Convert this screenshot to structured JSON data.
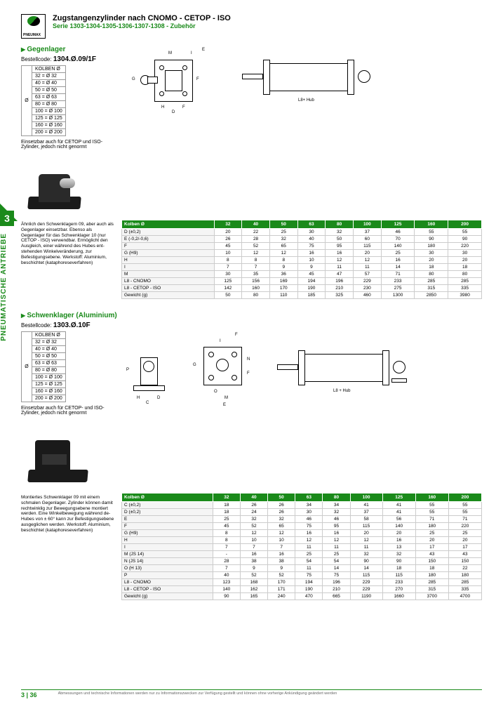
{
  "header": {
    "title": "Zugstangenzylinder nach CNOMO - CETOP - ISO",
    "subtitle": "Serie 1303-1304-1305-1306-1307-1308 - Zubehör",
    "brand": "PNEUMAX"
  },
  "sidebar": {
    "chapter": "3",
    "label": "PNEUMATISCHE ANTRIEBE"
  },
  "sec1": {
    "title": "Gegenlager",
    "code_lbl": "Bestellcode:",
    "code": "1304.Ø.09/1F",
    "kolben_hdr": "KOLBEN Ø",
    "kolben": [
      "32 = Ø 32",
      "40 = Ø 40",
      "50 = Ø 50",
      "63 = Ø 63",
      "80 = Ø 80",
      "100 = Ø 100",
      "125 = Ø 125",
      "160 = Ø 160",
      "200 = Ø 200"
    ],
    "note": "Einsetzbar auch für CETOP und ISO-Zylinder, jedoch nicht genormt",
    "desc": "Ähnlich den Schwenklagern 09, aber auch als Gegenlager einsetzbar. Ebenso als Gegenlager für das Schwenklager 10 (nur CETOP - ISO) verwendbar. Ermöglicht den Ausgleich, einer während des Hubes ent-stehenden Winkelveränderung, zur Befestigungsebene. Werkstoff: Aluminium, beschichtet (kataphoreseverfahren)",
    "cylinder_lbl": "L8+ Hub",
    "cols": [
      "Kolben Ø",
      "32",
      "40",
      "50",
      "63",
      "80",
      "100",
      "125",
      "160",
      "200"
    ],
    "rows": [
      [
        "D (±0,2)",
        "20",
        "22",
        "25",
        "30",
        "32",
        "37",
        "46",
        "55",
        "55"
      ],
      [
        "E (-0,2/-0,6)",
        "26",
        "28",
        "32",
        "40",
        "50",
        "60",
        "70",
        "90",
        "90"
      ],
      [
        "F",
        "45",
        "52",
        "65",
        "75",
        "95",
        "115",
        "140",
        "180",
        "220"
      ],
      [
        "G (H9)",
        "10",
        "12",
        "12",
        "16",
        "16",
        "20",
        "25",
        "30",
        "30"
      ],
      [
        "H",
        "8",
        "8",
        "8",
        "10",
        "12",
        "12",
        "16",
        "20",
        "20"
      ],
      [
        "I",
        "7",
        "7",
        "9",
        "9",
        "11",
        "11",
        "14",
        "18",
        "18"
      ],
      [
        "M",
        "30",
        "35",
        "36",
        "45",
        "47",
        "57",
        "71",
        "80",
        "80"
      ],
      [
        "L8 - CNOMO",
        "125",
        "156",
        "169",
        "194",
        "196",
        "229",
        "233",
        "285",
        "285"
      ],
      [
        "L8 - CETOP - ISO",
        "142",
        "160",
        "170",
        "190",
        "210",
        "230",
        "275",
        "315",
        "335"
      ],
      [
        "Gewicht (g)",
        "50",
        "80",
        "110",
        "185",
        "325",
        "460",
        "1300",
        "2850",
        "3980"
      ]
    ]
  },
  "sec2": {
    "title": "Schwenklager (Aluminium)",
    "code_lbl": "Bestellcode:",
    "code": "1303.Ø.10F",
    "kolben_hdr": "KOLBEN Ø",
    "kolben": [
      "32 = Ø 32",
      "40 = Ø 40",
      "50 = Ø 50",
      "63 = Ø 63",
      "80 = Ø 80",
      "100 = Ø 100",
      "125 = Ø 125",
      "160 = Ø 160",
      "200 = Ø 200"
    ],
    "note": "Einsetzbar auch für CETOP- und ISO-Zylinder, jedoch nicht genormt",
    "desc": "Montiertes Schwenklager 09 mit einem schmalen Gegenlager. Zylinder können damit rechtwinklig zur Bewegungsebene montiert werden. Eine Winkelbewegung während de- Hubes von ± 60° kann zur Befestigungsebene ausgeglichen werden. Werkstoff: Aluminium, beschichtet (kataphoreseverfahren)",
    "cylinder_lbl": "L8 + Hub",
    "cols": [
      "Kolben Ø",
      "32",
      "40",
      "50",
      "63",
      "80",
      "100",
      "125",
      "160",
      "200"
    ],
    "rows": [
      [
        "C (±0,2)",
        "18",
        "26",
        "26",
        "34",
        "34",
        "41",
        "41",
        "55",
        "55"
      ],
      [
        "D (±0,2)",
        "18",
        "24",
        "26",
        "30",
        "32",
        "37",
        "41",
        "55",
        "55"
      ],
      [
        "E",
        "25",
        "32",
        "32",
        "46",
        "46",
        "58",
        "56",
        "71",
        "71"
      ],
      [
        "F",
        "45",
        "52",
        "65",
        "75",
        "95",
        "115",
        "140",
        "180",
        "220"
      ],
      [
        "G (H9)",
        "8",
        "12",
        "12",
        "16",
        "16",
        "20",
        "20",
        "25",
        "25"
      ],
      [
        "H",
        "8",
        "10",
        "10",
        "12",
        "12",
        "12",
        "16",
        "20",
        "20"
      ],
      [
        "I",
        "7",
        "7",
        "7",
        "11",
        "11",
        "11",
        "13",
        "17",
        "17"
      ],
      [
        "M (JS 14)",
        "-",
        "16",
        "16",
        "25",
        "25",
        "32",
        "32",
        "43",
        "43"
      ],
      [
        "N (JS 14)",
        "28",
        "38",
        "38",
        "54",
        "54",
        "90",
        "90",
        "150",
        "150"
      ],
      [
        "O (H 13)",
        "7",
        "9",
        "9",
        "11",
        "14",
        "14",
        "18",
        "18",
        "22"
      ],
      [
        "P",
        "40",
        "52",
        "52",
        "75",
        "75",
        "115",
        "115",
        "180",
        "180"
      ],
      [
        "L8 - CNOMO",
        "123",
        "168",
        "170",
        "194",
        "196",
        "229",
        "233",
        "285",
        "285"
      ],
      [
        "L8 - CETOP - ISO",
        "140",
        "162",
        "171",
        "190",
        "210",
        "229",
        "270",
        "315",
        "335"
      ],
      [
        "Gewicht (g)",
        "90",
        "165",
        "240",
        "470",
        "665",
        "1190",
        "1660",
        "3700",
        "4700"
      ]
    ]
  },
  "footer": {
    "chapter": "3",
    "page": "36",
    "disclaimer": "Abmessungen und technische Informationen werden nur zu Informationszwecken zur Verfügung gestellt und können ohne vorherige Ankündigung geändert werden"
  }
}
